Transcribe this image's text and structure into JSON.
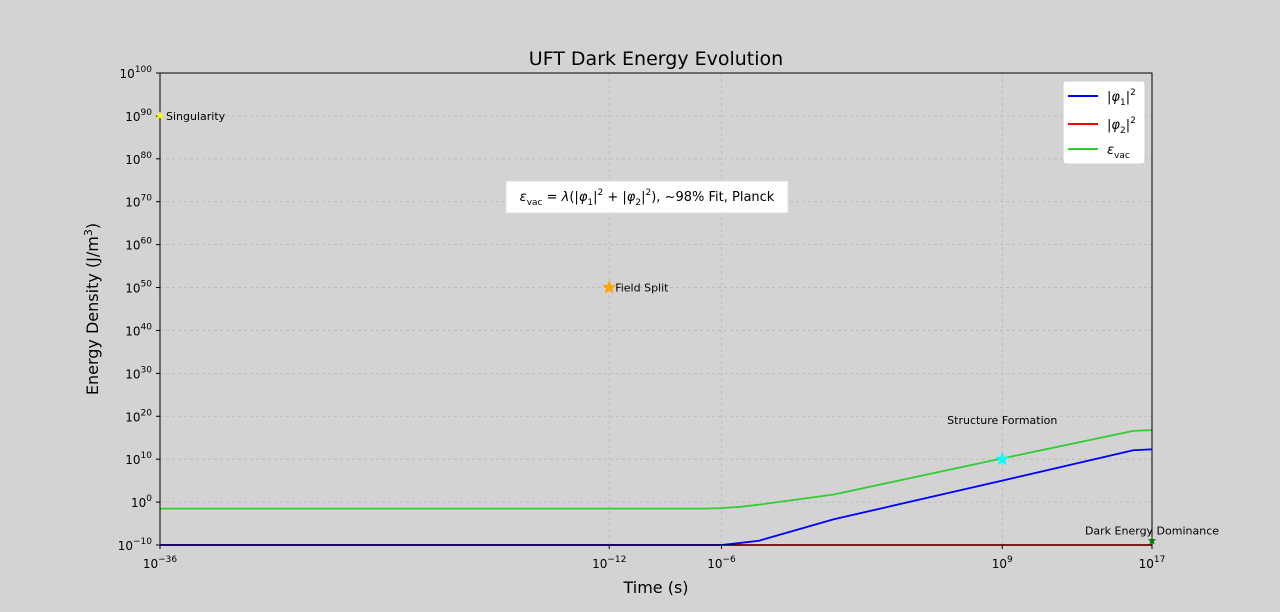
{
  "chart_data": {
    "type": "line",
    "title": "UFT Dark Energy Evolution",
    "xlabel": "Time (s)",
    "ylabel": "Energy Density (J/m³)",
    "x_scale": "log",
    "y_scale": "log",
    "xlim": [
      1e-36,
      1e+17
    ],
    "ylim": [
      1e-10,
      1e+100
    ],
    "grid": true,
    "x_ticks": [
      {
        "value": 1e-36,
        "base": "10",
        "exp": "−36"
      },
      {
        "value": 1e-12,
        "base": "10",
        "exp": "−12"
      },
      {
        "value": 1e-06,
        "base": "10",
        "exp": "−6"
      },
      {
        "value": 1000000000.0,
        "base": "10",
        "exp": "9"
      },
      {
        "value": 1e+17,
        "base": "10",
        "exp": "17"
      }
    ],
    "y_ticks": [
      {
        "value": 1e-10,
        "base": "10",
        "exp": "−10"
      },
      {
        "value": 1.0,
        "base": "10",
        "exp": "0"
      },
      {
        "value": 10000000000.0,
        "base": "10",
        "exp": "10"
      },
      {
        "value": 1e+20,
        "base": "10",
        "exp": "20"
      },
      {
        "value": 1e+30,
        "base": "10",
        "exp": "30"
      },
      {
        "value": 1e+40,
        "base": "10",
        "exp": "40"
      },
      {
        "value": 1e+50,
        "base": "10",
        "exp": "50"
      },
      {
        "value": 1e+60,
        "base": "10",
        "exp": "60"
      },
      {
        "value": 1e+70,
        "base": "10",
        "exp": "70"
      },
      {
        "value": 1e+80,
        "base": "10",
        "exp": "80"
      },
      {
        "value": 1e+90,
        "base": "10",
        "exp": "90"
      },
      {
        "value": 1e+100,
        "base": "10",
        "exp": "100"
      }
    ],
    "legend_position": "top-right",
    "series": [
      {
        "name": "|φ1|²",
        "color": "#0000ff",
        "points": [
          [
            1e-36,
            1e-10
          ],
          [
            1e-07,
            1e-10
          ],
          [
            1e-06,
            1e-10
          ],
          [
            1e-05,
            3e-10
          ],
          [
            0.0001,
            1e-09
          ],
          [
            1.0,
            0.0001
          ],
          [
            1000000000.0,
            100000.0
          ],
          [
            1e+16,
            1200000000000.0
          ],
          [
            1e+17,
            2000000000000.0
          ]
        ]
      },
      {
        "name": "|φ2|²",
        "color": "#ff0000",
        "points": [
          [
            1e-36,
            1e-10
          ],
          [
            1e+17,
            1e-10
          ]
        ]
      },
      {
        "name": "ε_vac",
        "color": "#32cd32",
        "points": [
          [
            1e-36,
            0.03
          ],
          [
            1e-07,
            0.03
          ],
          [
            1e-06,
            0.04
          ],
          [
            1e-05,
            0.08
          ],
          [
            0.0001,
            0.25
          ],
          [
            0.001,
            1
          ],
          [
            1.0,
            60
          ],
          [
            1000000000.0,
            15000000000.0
          ],
          [
            1e+16,
            4e+16
          ],
          [
            1e+17,
            6e+16
          ]
        ]
      }
    ],
    "markers": [
      {
        "label": "Singularity",
        "x": 1e-36,
        "y": 1e+90,
        "color": "#ffff00",
        "size": "small"
      },
      {
        "label": "Field Split",
        "x": 1e-12,
        "y": 1e+50,
        "color": "#ffa500",
        "size": "large"
      },
      {
        "label": "Structure Formation",
        "x": 1000000000.0,
        "y": 10000000000.0,
        "color": "#00ffff",
        "size": "large"
      },
      {
        "label": "Dark Energy Dominance",
        "x": 1e+17,
        "y": 1e-09,
        "color": "#008000",
        "size": "small"
      }
    ],
    "annotation_box": "ε_vac = λ(|φ1|² + |φ2|²), ~98% Fit, Planck"
  }
}
